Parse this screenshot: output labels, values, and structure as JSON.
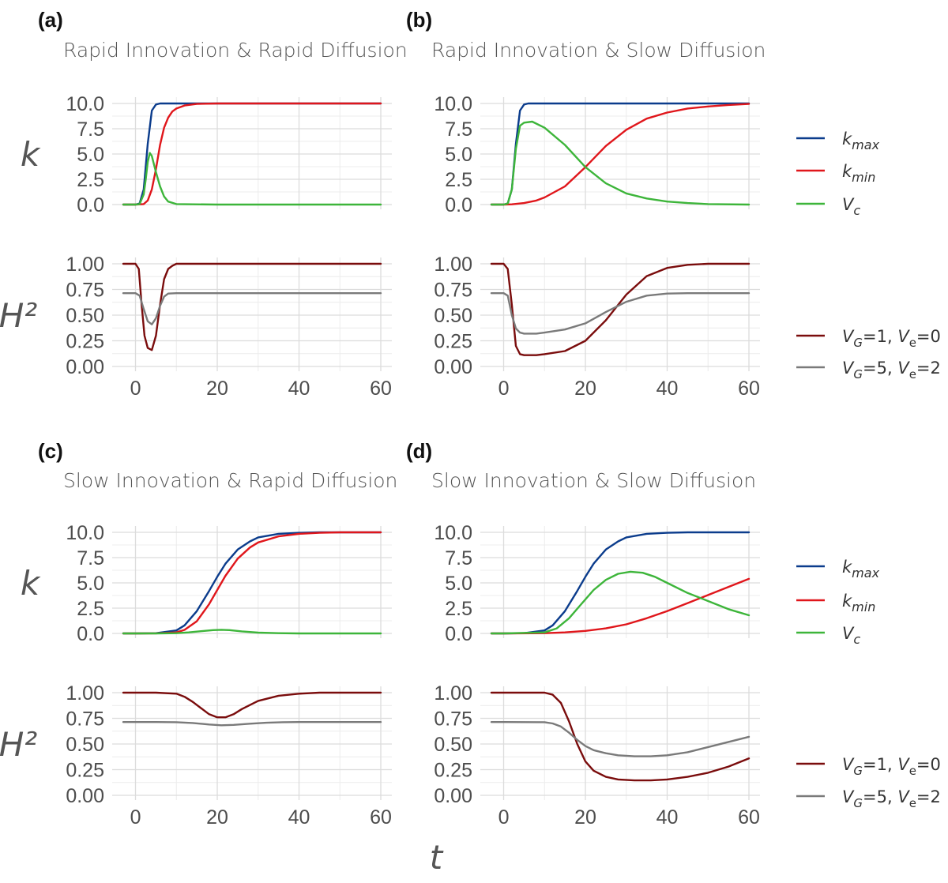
{
  "figure": {
    "x_axis_title": "t",
    "legend_k": [
      {
        "label": "k",
        "sub": "max",
        "color": "#0b3c8c"
      },
      {
        "label": "k",
        "sub": "min",
        "color": "#e0161b"
      },
      {
        "label": "V",
        "sub": "c",
        "color": "#3db53a"
      }
    ],
    "legend_h2": [
      {
        "label": "V_G=1, V_e=0",
        "color": "#7a0c0c"
      },
      {
        "label": "V_G=5, V_e=2",
        "color": "#7a7a7a"
      }
    ]
  },
  "chart_data": [
    {
      "panel": "(a)",
      "title": "Rapid Innovation & Rapid Diffusion",
      "type": "line",
      "top": {
        "ylabel": "k",
        "ylim": [
          0,
          10
        ],
        "yticks": [
          "0.0",
          "2.5",
          "5.0",
          "7.5",
          "10.0"
        ],
        "yvals": [
          0,
          2.5,
          5,
          7.5,
          10
        ],
        "series": [
          {
            "name": "k_max",
            "color": "#0b3c8c",
            "x": [
              -3,
              0,
              1,
              2,
              3,
              4,
              5,
              6,
              8,
              10,
              20,
              40,
              60
            ],
            "y": [
              0,
              0,
              0.1,
              1.5,
              6,
              9.3,
              9.9,
              10,
              10,
              10,
              10,
              10,
              10
            ]
          },
          {
            "name": "k_min",
            "color": "#e0161b",
            "x": [
              -3,
              0,
              2,
              3,
              4,
              5,
              6,
              7,
              8,
              9,
              10,
              12,
              15,
              20,
              40,
              60
            ],
            "y": [
              0,
              0,
              0.05,
              0.4,
              1.5,
              3.5,
              5.9,
              7.6,
              8.6,
              9.2,
              9.5,
              9.8,
              9.95,
              10,
              10,
              10
            ]
          },
          {
            "name": "V_c",
            "color": "#3db53a",
            "x": [
              -3,
              0,
              1,
              2,
              2.5,
              3,
              3.5,
              4,
              5,
              6,
              7,
              8,
              10,
              20,
              40,
              60
            ],
            "y": [
              0,
              0,
              0.05,
              1,
              2.5,
              4.2,
              5.1,
              4.8,
              3.2,
              1.8,
              0.8,
              0.3,
              0.05,
              0,
              0,
              0
            ]
          }
        ]
      },
      "bottom": {
        "ylabel": "H²",
        "ylim": [
          0,
          1
        ],
        "yticks": [
          "0.00",
          "0.25",
          "0.50",
          "0.75",
          "1.00"
        ],
        "yvals": [
          0,
          0.25,
          0.5,
          0.75,
          1
        ],
        "xticks": [
          "0",
          "20",
          "40",
          "60"
        ],
        "xvals": [
          0,
          20,
          40,
          60
        ],
        "series": [
          {
            "name": "V_G=1, V_e=0",
            "color": "#7a0c0c",
            "x": [
              -3,
              0,
              0.8,
              1.5,
              2.2,
              3,
              4,
              5,
              6,
              7,
              8,
              9,
              10,
              12,
              20,
              40,
              60
            ],
            "y": [
              1,
              1,
              0.95,
              0.6,
              0.3,
              0.18,
              0.16,
              0.3,
              0.6,
              0.85,
              0.95,
              0.98,
              1,
              1,
              1,
              1,
              1
            ]
          },
          {
            "name": "V_G=5, V_e=2",
            "color": "#7a7a7a",
            "x": [
              -3,
              0,
              1,
              2,
              3,
              4,
              5,
              6,
              7,
              8,
              10,
              20,
              40,
              60
            ],
            "y": [
              0.714,
              0.714,
              0.69,
              0.56,
              0.44,
              0.41,
              0.47,
              0.59,
              0.68,
              0.71,
              0.714,
              0.714,
              0.714,
              0.714
            ]
          }
        ]
      }
    },
    {
      "panel": "(b)",
      "title": "Rapid Innovation & Slow Diffusion",
      "type": "line",
      "top": {
        "ylabel": "",
        "ylim": [
          0,
          10
        ],
        "yticks": [
          "0.0",
          "2.5",
          "5.0",
          "7.5",
          "10.0"
        ],
        "yvals": [
          0,
          2.5,
          5,
          7.5,
          10
        ],
        "series": [
          {
            "name": "k_max",
            "color": "#0b3c8c",
            "x": [
              -3,
              0,
              1,
              2,
              3,
              4,
              5,
              6,
              8,
              10,
              20,
              40,
              60
            ],
            "y": [
              0,
              0,
              0.1,
              1.5,
              6,
              9.3,
              9.9,
              10,
              10,
              10,
              10,
              10,
              10
            ]
          },
          {
            "name": "k_min",
            "color": "#e0161b",
            "x": [
              -3,
              0,
              2,
              5,
              8,
              10,
              15,
              20,
              25,
              30,
              35,
              40,
              45,
              50,
              55,
              60
            ],
            "y": [
              0,
              0,
              0.02,
              0.15,
              0.4,
              0.7,
              1.8,
              3.7,
              5.8,
              7.4,
              8.5,
              9.1,
              9.5,
              9.7,
              9.85,
              9.95
            ]
          },
          {
            "name": "V_c",
            "color": "#3db53a",
            "x": [
              -3,
              0,
              1,
              2,
              3,
              4,
              5,
              7,
              10,
              15,
              20,
              25,
              30,
              35,
              40,
              45,
              50,
              60
            ],
            "y": [
              0,
              0,
              0.1,
              1.5,
              5.5,
              7.8,
              8.1,
              8.2,
              7.6,
              5.9,
              3.7,
              2.1,
              1.1,
              0.6,
              0.3,
              0.15,
              0.05,
              0
            ]
          }
        ]
      },
      "bottom": {
        "ylabel": "",
        "ylim": [
          0,
          1
        ],
        "yticks": [
          "0.00",
          "0.25",
          "0.50",
          "0.75",
          "1.00"
        ],
        "yvals": [
          0,
          0.25,
          0.5,
          0.75,
          1
        ],
        "xticks": [
          "0",
          "20",
          "40",
          "60"
        ],
        "xvals": [
          0,
          20,
          40,
          60
        ],
        "series": [
          {
            "name": "V_G=1, V_e=0",
            "color": "#7a0c0c",
            "x": [
              -3,
              0,
              1,
              2,
              3,
              4,
              5,
              8,
              10,
              15,
              20,
              25,
              30,
              35,
              40,
              45,
              50,
              60
            ],
            "y": [
              1,
              1,
              0.95,
              0.6,
              0.2,
              0.12,
              0.11,
              0.11,
              0.12,
              0.15,
              0.25,
              0.45,
              0.7,
              0.88,
              0.96,
              0.99,
              1,
              1
            ]
          },
          {
            "name": "V_G=5, V_e=2",
            "color": "#7a7a7a",
            "x": [
              -3,
              0,
              1,
              2,
              3,
              4,
              5,
              8,
              10,
              15,
              20,
              25,
              30,
              35,
              40,
              45,
              50,
              60
            ],
            "y": [
              0.714,
              0.714,
              0.69,
              0.5,
              0.37,
              0.33,
              0.32,
              0.32,
              0.33,
              0.36,
              0.42,
              0.53,
              0.63,
              0.69,
              0.71,
              0.714,
              0.714,
              0.714
            ]
          }
        ]
      }
    },
    {
      "panel": "(c)",
      "title": "Slow Innovation & Rapid Diffusion",
      "type": "line",
      "top": {
        "ylabel": "k",
        "ylim": [
          0,
          10
        ],
        "yticks": [
          "0.0",
          "2.5",
          "5.0",
          "7.5",
          "10.0"
        ],
        "yvals": [
          0,
          2.5,
          5,
          7.5,
          10
        ],
        "series": [
          {
            "name": "k_max",
            "color": "#0b3c8c",
            "x": [
              -3,
              0,
              5,
              10,
              12,
              15,
              18,
              20,
              22,
              25,
              28,
              30,
              35,
              40,
              45,
              50,
              60
            ],
            "y": [
              0,
              0,
              0.02,
              0.3,
              0.8,
              2.2,
              4.2,
              5.6,
              6.9,
              8.3,
              9.1,
              9.5,
              9.85,
              9.95,
              10,
              10,
              10
            ]
          },
          {
            "name": "k_min",
            "color": "#e0161b",
            "x": [
              -3,
              0,
              5,
              10,
              12,
              15,
              18,
              20,
              22,
              25,
              28,
              30,
              35,
              40,
              45,
              50,
              60
            ],
            "y": [
              0,
              0,
              0.01,
              0.1,
              0.35,
              1.2,
              2.9,
              4.3,
              5.7,
              7.4,
              8.5,
              9.0,
              9.6,
              9.85,
              9.95,
              10,
              10
            ]
          },
          {
            "name": "V_c",
            "color": "#3db53a",
            "x": [
              -3,
              0,
              5,
              10,
              13,
              16,
              19,
              21,
              23,
              26,
              30,
              35,
              40,
              60
            ],
            "y": [
              0,
              0,
              0,
              0.02,
              0.1,
              0.22,
              0.33,
              0.36,
              0.33,
              0.2,
              0.08,
              0.02,
              0,
              0
            ]
          }
        ]
      },
      "bottom": {
        "ylabel": "H²",
        "ylim": [
          0,
          1
        ],
        "yticks": [
          "0.00",
          "0.25",
          "0.50",
          "0.75",
          "1.00"
        ],
        "yvals": [
          0,
          0.25,
          0.5,
          0.75,
          1
        ],
        "xticks": [
          "0",
          "20",
          "40",
          "60"
        ],
        "xvals": [
          0,
          20,
          40,
          60
        ],
        "series": [
          {
            "name": "V_G=1, V_e=0",
            "color": "#7a0c0c",
            "x": [
              -3,
              0,
              5,
              10,
              12,
              14,
              16,
              18,
              20,
              22,
              24,
              26,
              30,
              35,
              40,
              45,
              60
            ],
            "y": [
              1,
              1,
              1,
              0.99,
              0.96,
              0.91,
              0.85,
              0.79,
              0.76,
              0.76,
              0.79,
              0.84,
              0.92,
              0.97,
              0.99,
              1,
              1
            ]
          },
          {
            "name": "V_G=5, V_e=2",
            "color": "#7a7a7a",
            "x": [
              -3,
              0,
              5,
              10,
              14,
              18,
              21,
              24,
              28,
              32,
              36,
              40,
              60
            ],
            "y": [
              0.714,
              0.714,
              0.714,
              0.712,
              0.705,
              0.69,
              0.682,
              0.686,
              0.698,
              0.707,
              0.712,
              0.714,
              0.714
            ]
          }
        ]
      }
    },
    {
      "panel": "(d)",
      "title": "Slow Innovation & Slow Diffusion",
      "type": "line",
      "top": {
        "ylabel": "",
        "ylim": [
          0,
          10
        ],
        "yticks": [
          "0.0",
          "2.5",
          "5.0",
          "7.5",
          "10.0"
        ],
        "yvals": [
          0,
          2.5,
          5,
          7.5,
          10
        ],
        "series": [
          {
            "name": "k_max",
            "color": "#0b3c8c",
            "x": [
              -3,
              0,
              5,
              10,
              12,
              15,
              18,
              20,
              22,
              25,
              28,
              30,
              35,
              40,
              45,
              50,
              60
            ],
            "y": [
              0,
              0,
              0.02,
              0.3,
              0.8,
              2.2,
              4.2,
              5.6,
              6.9,
              8.3,
              9.1,
              9.5,
              9.85,
              9.95,
              10,
              10,
              10
            ]
          },
          {
            "name": "k_min",
            "color": "#e0161b",
            "x": [
              -3,
              0,
              10,
              15,
              20,
              25,
              30,
              35,
              40,
              45,
              50,
              55,
              60
            ],
            "y": [
              0,
              0,
              0.02,
              0.1,
              0.25,
              0.5,
              0.9,
              1.5,
              2.2,
              3.0,
              3.8,
              4.6,
              5.4
            ]
          },
          {
            "name": "V_c",
            "color": "#3db53a",
            "x": [
              -3,
              0,
              10,
              13,
              16,
              19,
              22,
              25,
              28,
              31,
              34,
              37,
              40,
              45,
              50,
              55,
              60
            ],
            "y": [
              0,
              0,
              0.1,
              0.5,
              1.5,
              2.9,
              4.3,
              5.3,
              5.9,
              6.1,
              6.0,
              5.6,
              5.0,
              4.0,
              3.2,
              2.4,
              1.8
            ]
          }
        ]
      },
      "bottom": {
        "ylabel": "",
        "ylim": [
          0,
          1
        ],
        "yticks": [
          "0.00",
          "0.25",
          "0.50",
          "0.75",
          "1.00"
        ],
        "yvals": [
          0,
          0.25,
          0.5,
          0.75,
          1
        ],
        "xticks": [
          "0",
          "20",
          "40",
          "60"
        ],
        "xvals": [
          0,
          20,
          40,
          60
        ],
        "series": [
          {
            "name": "V_G=1, V_e=0",
            "color": "#7a0c0c",
            "x": [
              -3,
              0,
              10,
              12,
              14,
              16,
              18,
              20,
              22,
              25,
              28,
              32,
              36,
              40,
              45,
              50,
              55,
              60
            ],
            "y": [
              1,
              1,
              1,
              0.98,
              0.9,
              0.72,
              0.5,
              0.33,
              0.24,
              0.18,
              0.155,
              0.145,
              0.145,
              0.155,
              0.18,
              0.22,
              0.28,
              0.36
            ]
          },
          {
            "name": "V_G=5, V_e=2",
            "color": "#7a7a7a",
            "x": [
              -3,
              0,
              10,
              12,
              14,
              16,
              18,
              20,
              22,
              25,
              28,
              32,
              36,
              40,
              45,
              50,
              55,
              60
            ],
            "y": [
              0.714,
              0.714,
              0.712,
              0.7,
              0.67,
              0.61,
              0.54,
              0.48,
              0.44,
              0.41,
              0.39,
              0.38,
              0.38,
              0.39,
              0.42,
              0.47,
              0.52,
              0.57
            ]
          }
        ]
      }
    }
  ]
}
